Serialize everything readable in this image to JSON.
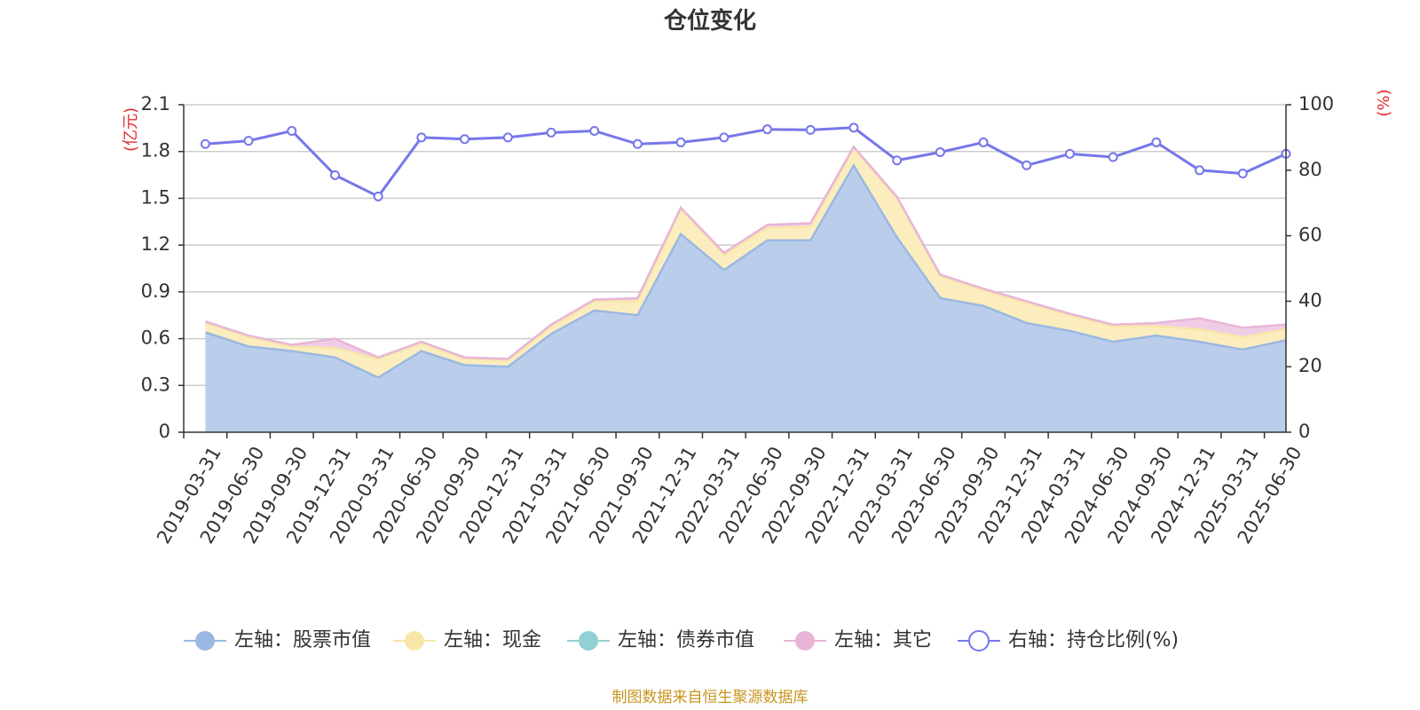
{
  "chart_data": {
    "type": "area",
    "title": "仓位变化",
    "left_axis": {
      "unit_label": "(亿元)",
      "range": [
        0,
        2.1
      ],
      "ticks": [
        "0",
        "0.3",
        "0.6",
        "0.9",
        "1.2",
        "1.5",
        "1.8",
        "2.1"
      ],
      "stacked": true
    },
    "right_axis": {
      "unit_label": "(%)",
      "range": [
        0,
        100
      ],
      "ticks": [
        "0",
        "20",
        "40",
        "60",
        "80",
        "100"
      ]
    },
    "grid": true,
    "legend_position": "bottom",
    "categories": [
      "2019-03-31",
      "2019-06-30",
      "2019-09-30",
      "2019-12-31",
      "2020-03-31",
      "2020-06-30",
      "2020-09-30",
      "2020-12-31",
      "2021-03-31",
      "2021-06-30",
      "2021-09-30",
      "2021-12-31",
      "2022-03-31",
      "2022-06-30",
      "2022-09-30",
      "2022-12-31",
      "2023-03-31",
      "2023-06-30",
      "2023-09-30",
      "2023-12-31",
      "2024-03-31",
      "2024-06-30",
      "2024-09-30",
      "2024-12-31",
      "2025-03-31",
      "2025-06-30"
    ],
    "series": [
      {
        "name": "左轴：股票市值",
        "axis": "left",
        "color": "#9bb8e2",
        "fill": "#b6cbea",
        "values": [
          0.64,
          0.55,
          0.52,
          0.48,
          0.35,
          0.52,
          0.43,
          0.42,
          0.63,
          0.78,
          0.75,
          1.27,
          1.04,
          1.23,
          1.23,
          1.71,
          1.25,
          0.86,
          0.81,
          0.7,
          0.65,
          0.58,
          0.62,
          0.58,
          0.53,
          0.59
        ]
      },
      {
        "name": "左轴：现金",
        "axis": "left",
        "color": "#f8e6a8",
        "fill": "#fbecbb",
        "values": [
          0.06,
          0.06,
          0.03,
          0.06,
          0.12,
          0.05,
          0.04,
          0.04,
          0.05,
          0.06,
          0.09,
          0.16,
          0.1,
          0.08,
          0.09,
          0.11,
          0.25,
          0.14,
          0.1,
          0.13,
          0.1,
          0.1,
          0.06,
          0.08,
          0.08,
          0.07
        ]
      },
      {
        "name": "左轴：债券市值",
        "axis": "left",
        "color": "#92d0d4",
        "fill": "#b8e2e4",
        "values": [
          0,
          0,
          0,
          0,
          0,
          0,
          0,
          0,
          0,
          0,
          0,
          0,
          0,
          0,
          0,
          0,
          0,
          0,
          0,
          0,
          0,
          0,
          0,
          0,
          0,
          0
        ]
      },
      {
        "name": "左轴：其它",
        "axis": "left",
        "color": "#e8b5d8",
        "fill": "#efcae6",
        "values": [
          0.01,
          0.01,
          0.01,
          0.06,
          0.01,
          0.01,
          0.01,
          0.01,
          0.01,
          0.01,
          0.02,
          0.01,
          0.01,
          0.02,
          0.02,
          0.01,
          0.01,
          0.01,
          0.01,
          0.01,
          0.01,
          0.01,
          0.02,
          0.07,
          0.06,
          0.03
        ]
      },
      {
        "name": "右轴：持仓比例(%)",
        "axis": "right",
        "color": "#7677ea",
        "values": [
          88,
          89,
          92,
          78.5,
          72,
          90,
          89.5,
          90,
          91.5,
          92,
          88,
          88.5,
          90,
          92.5,
          92.3,
          93,
          83,
          85.5,
          88.5,
          81.5,
          85,
          84,
          88.5,
          80,
          79,
          85
        ]
      }
    ]
  },
  "source_text": "制图数据来自恒生聚源数据库",
  "colors": {
    "axis_unit": "#e03030",
    "source": "#c8941e",
    "grid": "#cccccc",
    "axis": "#333333"
  }
}
